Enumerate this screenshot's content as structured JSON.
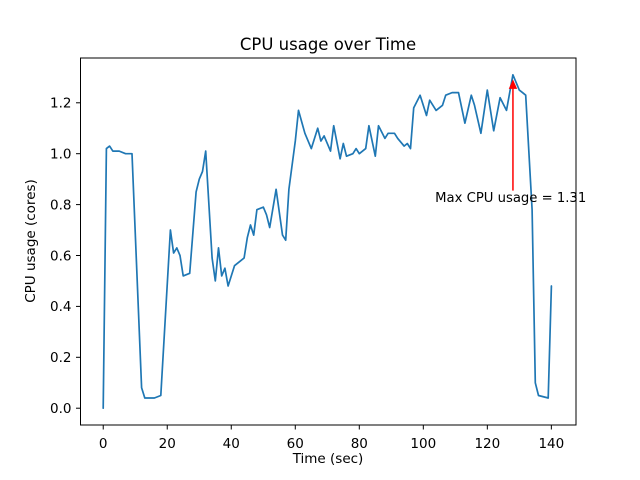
{
  "chart_data": {
    "type": "line",
    "title": "CPU usage over Time",
    "xlabel": "Time (sec)",
    "ylabel": "CPU usage (cores)",
    "xlim": [
      -7.1,
      147.7
    ],
    "ylim": [
      -0.066,
      1.376
    ],
    "xticks": [
      0,
      20,
      40,
      60,
      80,
      100,
      120,
      140
    ],
    "yticks": [
      0.0,
      0.2,
      0.4,
      0.6,
      0.8,
      1.0,
      1.2
    ],
    "grid": false,
    "legend": "none",
    "line_color": "#1f77b4",
    "points": [
      [
        0,
        0.0
      ],
      [
        1,
        1.02
      ],
      [
        2,
        1.03
      ],
      [
        3,
        1.01
      ],
      [
        5,
        1.01
      ],
      [
        7,
        1.0
      ],
      [
        9,
        1.0
      ],
      [
        12,
        0.08
      ],
      [
        13,
        0.04
      ],
      [
        16,
        0.04
      ],
      [
        18,
        0.05
      ],
      [
        21,
        0.7
      ],
      [
        22,
        0.61
      ],
      [
        23,
        0.63
      ],
      [
        24,
        0.6
      ],
      [
        25,
        0.52
      ],
      [
        27,
        0.53
      ],
      [
        28,
        0.69
      ],
      [
        29,
        0.85
      ],
      [
        30,
        0.9
      ],
      [
        31,
        0.93
      ],
      [
        32,
        1.01
      ],
      [
        34,
        0.59
      ],
      [
        35,
        0.5
      ],
      [
        36,
        0.63
      ],
      [
        37,
        0.52
      ],
      [
        38,
        0.55
      ],
      [
        39,
        0.48
      ],
      [
        41,
        0.56
      ],
      [
        43,
        0.58
      ],
      [
        44,
        0.59
      ],
      [
        45,
        0.67
      ],
      [
        46,
        0.72
      ],
      [
        47,
        0.68
      ],
      [
        48,
        0.78
      ],
      [
        50,
        0.79
      ],
      [
        51,
        0.76
      ],
      [
        52,
        0.71
      ],
      [
        54,
        0.86
      ],
      [
        56,
        0.68
      ],
      [
        57,
        0.66
      ],
      [
        58,
        0.86
      ],
      [
        60,
        1.05
      ],
      [
        61,
        1.17
      ],
      [
        63,
        1.08
      ],
      [
        65,
        1.02
      ],
      [
        67,
        1.1
      ],
      [
        68,
        1.05
      ],
      [
        69,
        1.07
      ],
      [
        71,
        1.01
      ],
      [
        72,
        1.11
      ],
      [
        74,
        0.98
      ],
      [
        75,
        1.04
      ],
      [
        76,
        0.99
      ],
      [
        78,
        1.0
      ],
      [
        79,
        1.02
      ],
      [
        80,
        1.0
      ],
      [
        82,
        1.02
      ],
      [
        83,
        1.11
      ],
      [
        85,
        0.99
      ],
      [
        86,
        1.11
      ],
      [
        88,
        1.06
      ],
      [
        89,
        1.08
      ],
      [
        91,
        1.08
      ],
      [
        92,
        1.06
      ],
      [
        94,
        1.03
      ],
      [
        95,
        1.04
      ],
      [
        96,
        1.02
      ],
      [
        97,
        1.18
      ],
      [
        99,
        1.23
      ],
      [
        101,
        1.15
      ],
      [
        102,
        1.21
      ],
      [
        104,
        1.17
      ],
      [
        106,
        1.19
      ],
      [
        107,
        1.23
      ],
      [
        109,
        1.24
      ],
      [
        111,
        1.24
      ],
      [
        113,
        1.12
      ],
      [
        115,
        1.23
      ],
      [
        116,
        1.19
      ],
      [
        118,
        1.08
      ],
      [
        120,
        1.25
      ],
      [
        122,
        1.09
      ],
      [
        124,
        1.22
      ],
      [
        126,
        1.17
      ],
      [
        128,
        1.31
      ],
      [
        130,
        1.25
      ],
      [
        131,
        1.24
      ],
      [
        132,
        1.23
      ],
      [
        134,
        0.78
      ],
      [
        135,
        0.1
      ],
      [
        136,
        0.05
      ],
      [
        139,
        0.04
      ],
      [
        140,
        0.48
      ]
    ],
    "annotation": {
      "text": "Max CPU usage = 1.31",
      "max_value": 1.31,
      "color": "#ff0000",
      "arrow_x": 128,
      "arrow_tip_y": 1.292,
      "arrow_base_y": 0.855,
      "text_x": 103.7,
      "text_y": 0.81
    }
  }
}
